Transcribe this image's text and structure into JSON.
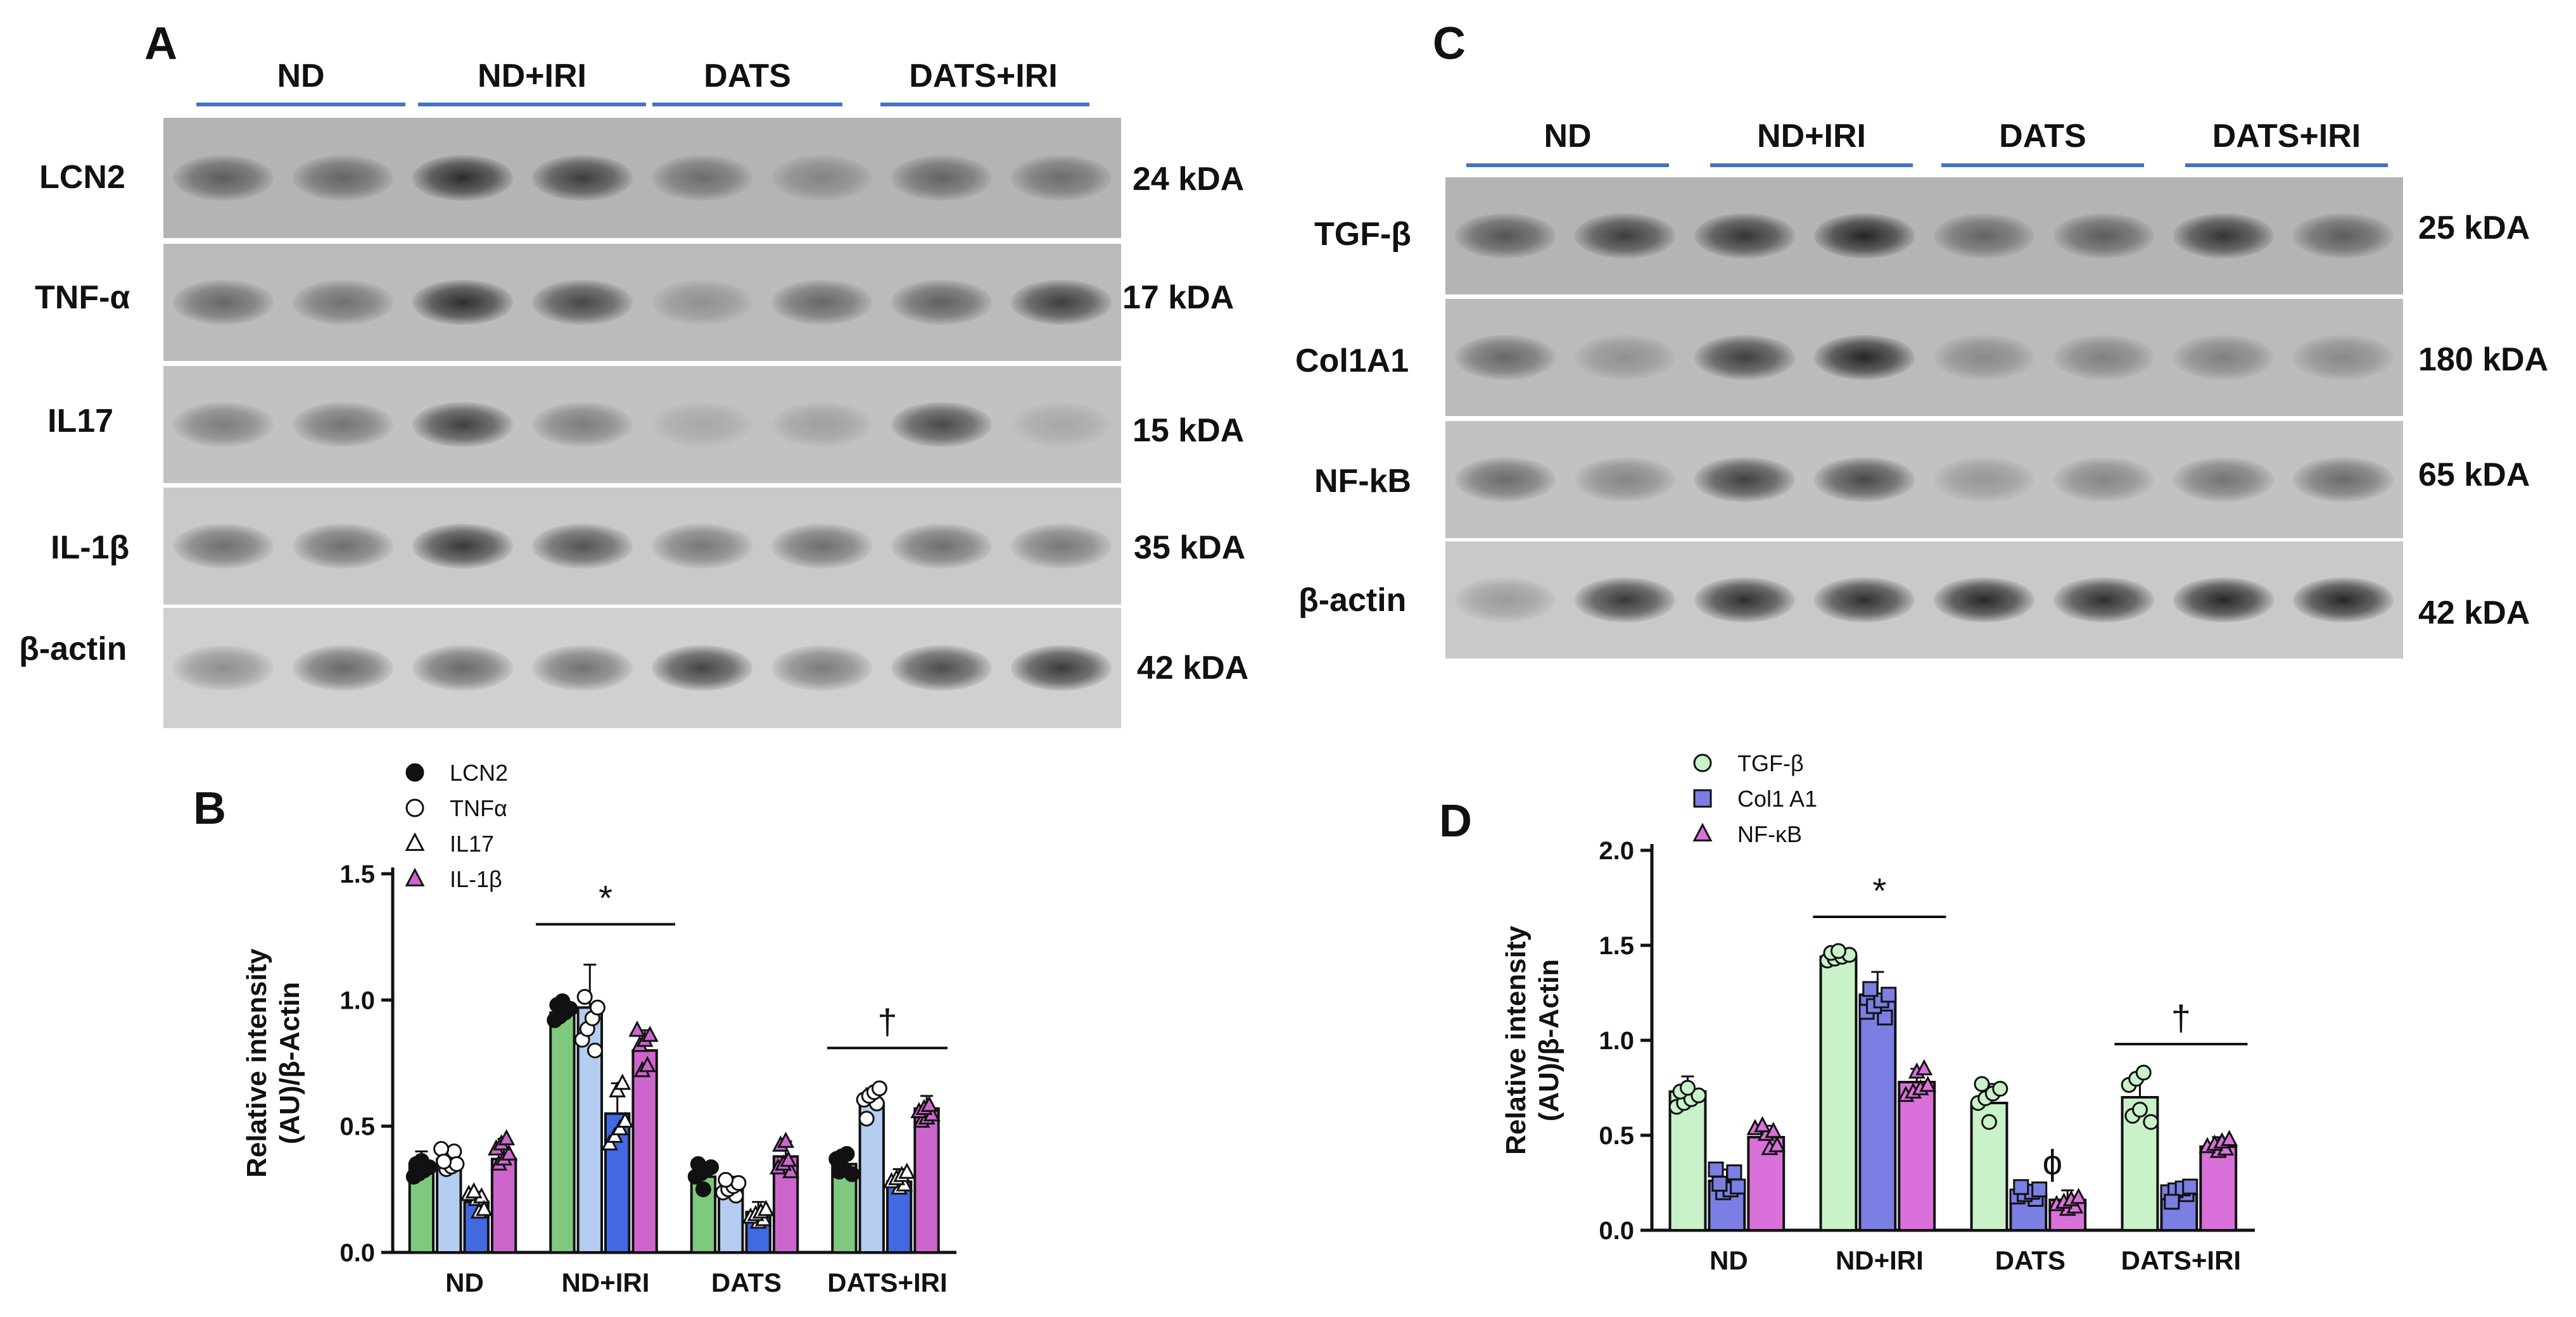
{
  "panels": {
    "a": "A",
    "b": "B",
    "c": "C",
    "d": "D"
  },
  "blot_a": {
    "groups": [
      "ND",
      "ND+IRI",
      "DATS",
      "DATS+IRI"
    ],
    "rows": [
      {
        "name": "LCN2",
        "kda": "24 kDA"
      },
      {
        "name": "TNF-α",
        "kda": "17 kDA"
      },
      {
        "name": "IL17",
        "kda": "15 kDA"
      },
      {
        "name": "IL-1β",
        "kda": "35 kDA"
      },
      {
        "name": "β-actin",
        "kda": "42 kDA"
      }
    ],
    "intensity": [
      [
        0.55,
        0.5,
        0.85,
        0.75,
        0.45,
        0.3,
        0.5,
        0.45
      ],
      [
        0.5,
        0.45,
        0.85,
        0.7,
        0.25,
        0.5,
        0.55,
        0.75
      ],
      [
        0.4,
        0.45,
        0.75,
        0.4,
        0.15,
        0.2,
        0.7,
        0.15
      ],
      [
        0.5,
        0.5,
        0.8,
        0.65,
        0.45,
        0.5,
        0.5,
        0.45
      ],
      [
        0.35,
        0.55,
        0.55,
        0.5,
        0.75,
        0.45,
        0.7,
        0.8
      ]
    ]
  },
  "blot_c": {
    "groups": [
      "ND",
      "ND+IRI",
      "DATS",
      "DATS+IRI"
    ],
    "rows": [
      {
        "name": "TGF-β",
        "kda": "25 kDA"
      },
      {
        "name": "Col1A1",
        "kda": "180 kDA"
      },
      {
        "name": "NF-kB",
        "kda": "65 kDA"
      },
      {
        "name": "β-actin",
        "kda": "42 kDA"
      }
    ],
    "intensity": [
      [
        0.6,
        0.75,
        0.8,
        0.9,
        0.5,
        0.55,
        0.8,
        0.55
      ],
      [
        0.5,
        0.25,
        0.75,
        0.9,
        0.3,
        0.35,
        0.35,
        0.3
      ],
      [
        0.5,
        0.35,
        0.75,
        0.7,
        0.25,
        0.35,
        0.45,
        0.5
      ],
      [
        0.25,
        0.8,
        0.85,
        0.85,
        0.9,
        0.85,
        0.9,
        0.9
      ]
    ]
  },
  "chart_data": [
    {
      "type": "bar",
      "panel": "B",
      "categories": [
        "ND",
        "ND+IRI",
        "DATS",
        "DATS+IRI"
      ],
      "ylabel": "Relative intensity (AU)/β-Actin",
      "ylim": [
        0,
        1.5
      ],
      "yticks": [
        "0.0",
        "0.5",
        "1.0",
        "1.5"
      ],
      "legend_position": "top",
      "series": [
        {
          "name": "LCN2",
          "marker": "filled-circle",
          "color": "#7fc97f",
          "values": [
            0.35,
            0.95,
            0.3,
            0.35
          ],
          "errors": [
            0.05,
            0.06,
            0.05,
            0.04
          ]
        },
        {
          "name": "TNFα",
          "marker": "open-circle",
          "color": "#b4cdf0",
          "values": [
            0.37,
            0.97,
            0.25,
            0.59
          ],
          "errors": [
            0.04,
            0.17,
            0.05,
            0.06
          ]
        },
        {
          "name": "IL17",
          "marker": "open-triangle",
          "color": "#4169e1",
          "values": [
            0.2,
            0.55,
            0.16,
            0.28
          ],
          "errors": [
            0.04,
            0.12,
            0.04,
            0.05
          ]
        },
        {
          "name": "IL-1β",
          "marker": "filled-triangle",
          "color": "#cc66cc",
          "values": [
            0.37,
            0.8,
            0.38,
            0.57
          ],
          "errors": [
            0.08,
            0.08,
            0.06,
            0.05
          ]
        }
      ],
      "annotations": [
        {
          "text": "*",
          "over_category": "ND+IRI"
        },
        {
          "text": "†",
          "over_category": "DATS+IRI"
        }
      ]
    },
    {
      "type": "bar",
      "panel": "D",
      "categories": [
        "ND",
        "ND+IRI",
        "DATS",
        "DATS+IRI"
      ],
      "ylabel": "Relative intensity (AU)/β-Actin",
      "ylim": [
        0,
        2.0
      ],
      "yticks": [
        "0.0",
        "0.5",
        "1.0",
        "1.5",
        "2.0"
      ],
      "legend_position": "top",
      "series": [
        {
          "name": "TGF-β",
          "marker": "circle",
          "color": "#c9f2c9",
          "values": [
            0.73,
            1.44,
            0.67,
            0.7
          ],
          "errors": [
            0.08,
            0.04,
            0.1,
            0.13
          ]
        },
        {
          "name": "Col1 A1",
          "marker": "square",
          "color": "#7b7fe3",
          "values": [
            0.26,
            1.24,
            0.19,
            0.19
          ],
          "errors": [
            0.06,
            0.12,
            0.05,
            0.04
          ]
        },
        {
          "name": "NF-κB",
          "marker": "triangle",
          "color": "#da70da",
          "values": [
            0.49,
            0.78,
            0.16,
            0.44
          ],
          "errors": [
            0.06,
            0.07,
            0.05,
            0.05
          ]
        }
      ],
      "annotations": [
        {
          "text": "*",
          "over_category": "ND+IRI"
        },
        {
          "text": "ϕ",
          "over_category": "DATS"
        },
        {
          "text": "†",
          "over_category": "DATS+IRI"
        }
      ]
    }
  ]
}
